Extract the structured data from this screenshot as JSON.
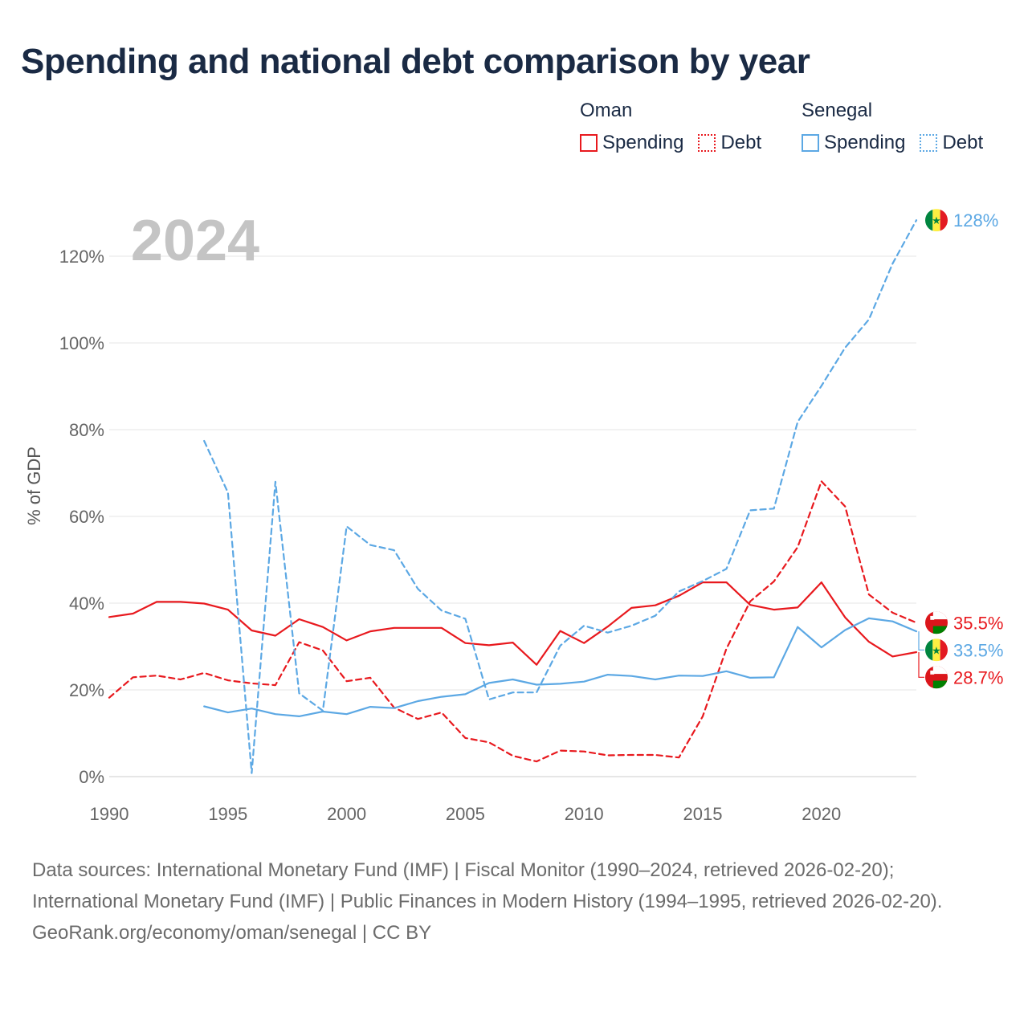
{
  "title": "Spending and national debt comparison by year",
  "legend": {
    "oman": {
      "name": "Oman",
      "spending": "Spending",
      "debt": "Debt"
    },
    "senegal": {
      "name": "Senegal",
      "spending": "Spending",
      "debt": "Debt"
    }
  },
  "colors": {
    "oman": "#e8191e",
    "senegal": "#5ca8e4"
  },
  "year_watermark": "2024",
  "footer": {
    "source_line": "Data sources: International Monetary Fund (IMF) | Fiscal Monitor (1990–2024, retrieved 2026-02-20); International Monetary Fund (IMF) | Public Finances in Modern History (1994–1995, retrieved 2026-02-20).",
    "credit_line": "GeoRank.org/economy/oman/senegal | CC BY"
  },
  "chart_data": {
    "type": "line",
    "title": "Spending and national debt comparison by year",
    "xlabel": "",
    "ylabel": "% of GDP",
    "xlim": [
      1990,
      2024
    ],
    "ylim": [
      0,
      130
    ],
    "x_ticks": [
      1990,
      1995,
      2000,
      2005,
      2010,
      2015,
      2020
    ],
    "x_tick_labels": [
      "1990",
      "1995",
      "2000",
      "2005",
      "2010",
      "2015",
      "2020"
    ],
    "y_ticks": [
      0,
      20,
      40,
      60,
      80,
      100,
      120
    ],
    "y_tick_labels": [
      "0%",
      "20%",
      "40%",
      "60%",
      "80%",
      "100%",
      "120%"
    ],
    "grid": true,
    "legend_position": "top-right",
    "series": [
      {
        "name": "Oman Spending",
        "country": "oman",
        "style": "solid",
        "x": [
          1990,
          1991,
          1992,
          1993,
          1994,
          1995,
          1996,
          1997,
          1998,
          1999,
          2000,
          2001,
          2002,
          2003,
          2004,
          2005,
          2006,
          2007,
          2008,
          2009,
          2010,
          2011,
          2012,
          2013,
          2014,
          2015,
          2016,
          2017,
          2018,
          2019,
          2020,
          2021,
          2022,
          2023,
          2024
        ],
        "values": [
          36.8,
          37.6,
          40.3,
          40.3,
          39.9,
          38.5,
          33.7,
          32.5,
          36.3,
          34.5,
          31.4,
          33.5,
          34.3,
          34.3,
          34.3,
          30.8,
          30.3,
          30.9,
          25.8,
          33.6,
          30.8,
          34.6,
          38.9,
          39.5,
          41.7,
          44.8,
          44.8,
          39.6,
          38.5,
          39.0,
          44.8,
          36.7,
          31.1,
          27.7,
          28.7
        ],
        "end_label": "28.7%"
      },
      {
        "name": "Oman Debt",
        "country": "oman",
        "style": "dashed",
        "x": [
          1990,
          1991,
          1992,
          1993,
          1994,
          1995,
          1996,
          1997,
          1998,
          1999,
          2000,
          2001,
          2002,
          2003,
          2004,
          2005,
          2006,
          2007,
          2008,
          2009,
          2010,
          2011,
          2012,
          2013,
          2014,
          2015,
          2016,
          2017,
          2018,
          2019,
          2020,
          2021,
          2022,
          2023,
          2024
        ],
        "values": [
          18.2,
          22.9,
          23.3,
          22.4,
          23.9,
          22.2,
          21.5,
          21.1,
          31.0,
          29.1,
          22.0,
          22.8,
          15.9,
          13.3,
          14.8,
          8.9,
          7.9,
          4.8,
          3.5,
          6.0,
          5.8,
          4.9,
          5.0,
          5.0,
          4.4,
          13.9,
          29.5,
          40.4,
          45.0,
          52.9,
          68.1,
          62.3,
          42.0,
          37.8,
          35.5
        ],
        "end_label": "35.5%"
      },
      {
        "name": "Senegal Spending",
        "country": "senegal",
        "style": "solid",
        "x": [
          1994,
          1995,
          1996,
          1997,
          1998,
          1999,
          2000,
          2001,
          2002,
          2003,
          2004,
          2005,
          2006,
          2007,
          2008,
          2009,
          2010,
          2011,
          2012,
          2013,
          2014,
          2015,
          2016,
          2017,
          2018,
          2019,
          2020,
          2021,
          2022,
          2023,
          2024
        ],
        "values": [
          16.2,
          14.8,
          15.7,
          14.4,
          13.9,
          15.0,
          14.4,
          16.1,
          15.8,
          17.4,
          18.4,
          19.0,
          21.6,
          22.4,
          21.2,
          21.4,
          21.9,
          23.5,
          23.2,
          22.4,
          23.3,
          23.2,
          24.3,
          22.8,
          22.9,
          34.5,
          29.8,
          33.8,
          36.5,
          35.8,
          33.5
        ],
        "end_label": "33.5%"
      },
      {
        "name": "Senegal Debt",
        "country": "senegal",
        "style": "dashed",
        "x": [
          1994,
          1995,
          1996,
          1997,
          1998,
          1999,
          2000,
          2001,
          2002,
          2003,
          2004,
          2005,
          2006,
          2007,
          2008,
          2009,
          2010,
          2011,
          2012,
          2013,
          2014,
          2015,
          2016,
          2017,
          2018,
          2019,
          2020,
          2021,
          2022,
          2023,
          2024
        ],
        "values": [
          77.4,
          65.5,
          0.8,
          68.0,
          19.2,
          15.2,
          57.7,
          53.4,
          52.2,
          43.3,
          38.3,
          36.4,
          17.8,
          19.4,
          19.4,
          30.2,
          34.8,
          33.2,
          34.8,
          37.1,
          42.7,
          45.1,
          47.9,
          61.4,
          61.8,
          81.8,
          90.1,
          98.9,
          105.4,
          118.3,
          128.3
        ],
        "end_label": "128%"
      }
    ]
  }
}
